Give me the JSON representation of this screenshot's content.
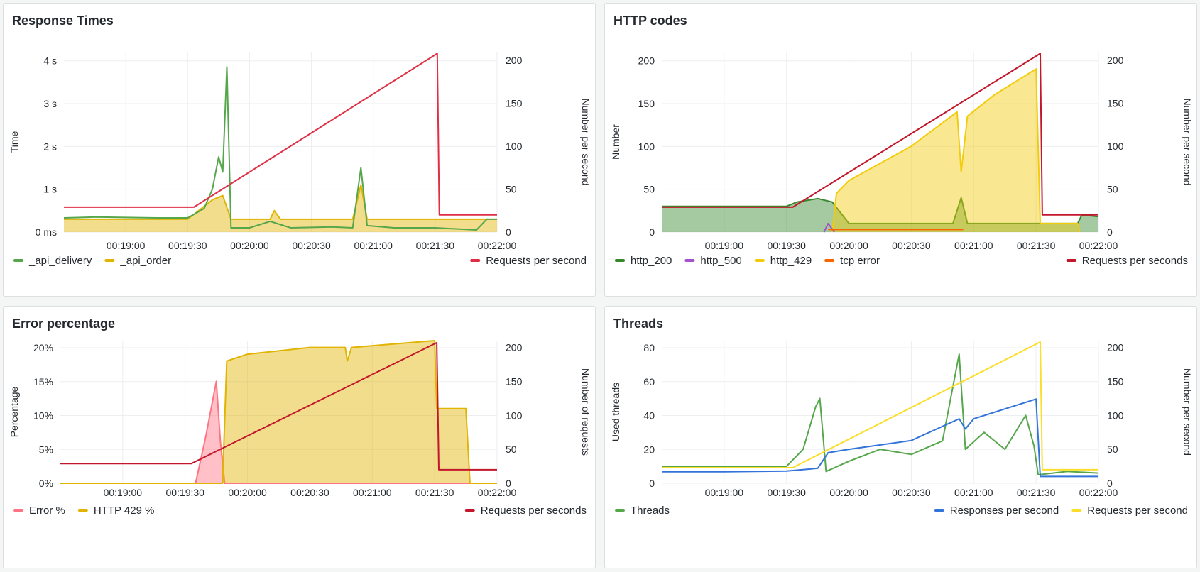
{
  "panels": [
    {
      "title": "Response Times",
      "chart_data": {
        "type": "line",
        "x_ticks": [
          "00:19:00",
          "00:19:30",
          "00:20:00",
          "00:20:30",
          "00:21:00",
          "00:21:30",
          "00:22:00"
        ],
        "y_left": {
          "label": "Time",
          "ticks": [
            "0 ms",
            "1 s",
            "2 s",
            "3 s",
            "4 s"
          ],
          "range": [
            0,
            4.2
          ],
          "unit": "s"
        },
        "y_right": {
          "label": "Number per second",
          "ticks": [
            "0",
            "50",
            "100",
            "150",
            "200"
          ],
          "range": [
            0,
            200
          ]
        },
        "series": [
          {
            "name": "_api_delivery",
            "color": "#56a64b",
            "axis": "left",
            "points": [
              [
                "00:18:30",
                0.33
              ],
              [
                "00:18:45",
                0.35
              ],
              [
                "00:19:00",
                0.34
              ],
              [
                "00:19:15",
                0.33
              ],
              [
                "00:19:30",
                0.33
              ],
              [
                "00:19:38",
                0.55
              ],
              [
                "00:19:42",
                1.0
              ],
              [
                "00:19:45",
                1.75
              ],
              [
                "00:19:47",
                1.4
              ],
              [
                "00:19:49",
                3.85
              ],
              [
                "00:19:51",
                0.1
              ],
              [
                "00:20:00",
                0.1
              ],
              [
                "00:20:10",
                0.25
              ],
              [
                "00:20:20",
                0.1
              ],
              [
                "00:20:40",
                0.12
              ],
              [
                "00:20:50",
                0.1
              ],
              [
                "00:20:54",
                1.5
              ],
              [
                "00:20:57",
                0.15
              ],
              [
                "00:21:10",
                0.1
              ],
              [
                "00:21:30",
                0.1
              ],
              [
                "00:21:50",
                0.05
              ],
              [
                "00:21:55",
                0.3
              ],
              [
                "00:22:00",
                0.3
              ]
            ]
          },
          {
            "name": "_api_order",
            "color": "#e0b400",
            "axis": "left",
            "fill": true,
            "points": [
              [
                "00:18:30",
                0.3
              ],
              [
                "00:19:00",
                0.3
              ],
              [
                "00:19:30",
                0.3
              ],
              [
                "00:19:42",
                0.75
              ],
              [
                "00:19:47",
                0.85
              ],
              [
                "00:19:51",
                0.3
              ],
              [
                "00:20:10",
                0.3
              ],
              [
                "00:20:12",
                0.5
              ],
              [
                "00:20:15",
                0.3
              ],
              [
                "00:20:50",
                0.3
              ],
              [
                "00:20:54",
                1.1
              ],
              [
                "00:20:57",
                0.3
              ],
              [
                "00:21:50",
                0.3
              ],
              [
                "00:22:00",
                0.3
              ]
            ]
          },
          {
            "name": "Requests per second",
            "color": "#e02f44",
            "axis": "right",
            "points": [
              [
                "00:18:30",
                29
              ],
              [
                "00:19:33",
                29
              ],
              [
                "00:21:31",
                208
              ],
              [
                "00:21:32",
                20
              ],
              [
                "00:22:00",
                20
              ]
            ]
          }
        ],
        "legend": {
          "placement": "bottom",
          "left": [
            "_api_delivery",
            "_api_order"
          ],
          "right": [
            "Requests per second"
          ]
        }
      }
    },
    {
      "title": "HTTP codes",
      "chart_data": {
        "type": "area",
        "x_ticks": [
          "00:19:00",
          "00:19:30",
          "00:20:00",
          "00:20:30",
          "00:21:00",
          "00:21:30",
          "00:22:00"
        ],
        "y_left": {
          "label": "Number",
          "ticks": [
            "0",
            "50",
            "100",
            "150",
            "200"
          ],
          "range": [
            0,
            210
          ]
        },
        "y_right": {
          "label": "Number per second",
          "ticks": [
            "0",
            "50",
            "100",
            "150",
            "200"
          ],
          "range": [
            0,
            200
          ]
        },
        "series": [
          {
            "name": "http_200",
            "color": "#37872d",
            "axis": "left",
            "fill": true,
            "points": [
              [
                "00:18:30",
                30
              ],
              [
                "00:19:00",
                30
              ],
              [
                "00:19:30",
                30
              ],
              [
                "00:19:35",
                35
              ],
              [
                "00:19:45",
                39
              ],
              [
                "00:19:52",
                35
              ],
              [
                "00:20:00",
                10
              ],
              [
                "00:20:30",
                10
              ],
              [
                "00:20:50",
                10
              ],
              [
                "00:20:54",
                40
              ],
              [
                "00:20:57",
                10
              ],
              [
                "00:21:30",
                10
              ],
              [
                "00:21:35",
                10
              ],
              [
                "00:21:50",
                10
              ],
              [
                "00:21:52",
                20
              ],
              [
                "00:22:00",
                18
              ]
            ]
          },
          {
            "name": "http_500",
            "color": "#a352cc",
            "axis": "left",
            "points": [
              [
                "00:19:48",
                0
              ],
              [
                "00:19:50",
                10
              ],
              [
                "00:19:53",
                0
              ]
            ]
          },
          {
            "name": "http_429",
            "color": "#f2cc0c",
            "axis": "left",
            "fill": true,
            "points": [
              [
                "00:19:52",
                0
              ],
              [
                "00:19:54",
                45
              ],
              [
                "00:20:00",
                60
              ],
              [
                "00:20:30",
                100
              ],
              [
                "00:20:52",
                140
              ],
              [
                "00:20:54",
                70
              ],
              [
                "00:20:57",
                135
              ],
              [
                "00:21:10",
                160
              ],
              [
                "00:21:30",
                190
              ],
              [
                "00:21:32",
                10
              ],
              [
                "00:21:50",
                10
              ],
              [
                "00:21:51",
                0
              ]
            ]
          },
          {
            "name": "tcp error",
            "color": "#fa6400",
            "axis": "left",
            "points": [
              [
                "00:19:50",
                3
              ],
              [
                "00:20:55",
                3
              ]
            ]
          },
          {
            "name": "Requests per seconds",
            "color": "#c4162a",
            "axis": "right",
            "points": [
              [
                "00:18:30",
                29
              ],
              [
                "00:19:33",
                29
              ],
              [
                "00:21:32",
                208
              ],
              [
                "00:21:33",
                20
              ],
              [
                "00:22:00",
                20
              ]
            ]
          }
        ],
        "legend": {
          "placement": "bottom",
          "left": [
            "http_200",
            "http_500",
            "http_429",
            "tcp error"
          ],
          "right": [
            "Requests per seconds"
          ]
        }
      }
    },
    {
      "title": "Error percentage",
      "chart_data": {
        "type": "area",
        "x_ticks": [
          "00:19:00",
          "00:19:30",
          "00:20:00",
          "00:20:30",
          "00:21:00",
          "00:21:30",
          "00:22:00"
        ],
        "y_left": {
          "label": "Percentage",
          "ticks": [
            "0%",
            "5%",
            "10%",
            "15%",
            "20%"
          ],
          "range": [
            0,
            21
          ],
          "unit": "%"
        },
        "y_right": {
          "label": "Number of requests",
          "ticks": [
            "0",
            "50",
            "100",
            "150",
            "200"
          ],
          "range": [
            0,
            200
          ]
        },
        "series": [
          {
            "name": "Error %",
            "color": "#ff7383",
            "axis": "left",
            "fill": true,
            "points": [
              [
                "00:18:30",
                0
              ],
              [
                "00:19:35",
                0
              ],
              [
                "00:19:40",
                7
              ],
              [
                "00:19:45",
                15
              ],
              [
                "00:19:47",
                6
              ],
              [
                "00:19:49",
                0
              ],
              [
                "00:22:00",
                0
              ]
            ]
          },
          {
            "name": "HTTP 429 %",
            "color": "#e0b400",
            "axis": "left",
            "fill": true,
            "points": [
              [
                "00:18:30",
                0
              ],
              [
                "00:19:48",
                0
              ],
              [
                "00:19:50",
                18
              ],
              [
                "00:20:00",
                19
              ],
              [
                "00:20:30",
                20
              ],
              [
                "00:20:47",
                20
              ],
              [
                "00:20:48",
                18
              ],
              [
                "00:20:50",
                20
              ],
              [
                "00:21:30",
                21
              ],
              [
                "00:21:31",
                11
              ],
              [
                "00:21:45",
                11
              ],
              [
                "00:21:47",
                0
              ],
              [
                "00:22:00",
                0
              ]
            ]
          },
          {
            "name": "Requests per seconds",
            "color": "#c4162a",
            "axis": "right",
            "points": [
              [
                "00:18:30",
                29
              ],
              [
                "00:19:33",
                29
              ],
              [
                "00:21:31",
                207
              ],
              [
                "00:21:32",
                20
              ],
              [
                "00:22:00",
                20
              ]
            ]
          }
        ],
        "legend": {
          "placement": "bottom",
          "left": [
            "Error %",
            "HTTP 429 %"
          ],
          "right": [
            "Requests per seconds"
          ]
        }
      }
    },
    {
      "title": "Threads",
      "chart_data": {
        "type": "line",
        "x_ticks": [
          "00:19:00",
          "00:19:30",
          "00:20:00",
          "00:20:30",
          "00:21:00",
          "00:21:30",
          "00:22:00"
        ],
        "y_left": {
          "label": "Used threads",
          "ticks": [
            "0",
            "20",
            "40",
            "60",
            "80"
          ],
          "range": [
            0,
            84
          ]
        },
        "y_right": {
          "label": "Number per second",
          "ticks": [
            "0",
            "50",
            "100",
            "150",
            "200"
          ],
          "range": [
            0,
            200
          ]
        },
        "series": [
          {
            "name": "Threads",
            "color": "#56a64b",
            "axis": "left",
            "points": [
              [
                "00:18:30",
                10
              ],
              [
                "00:19:00",
                10
              ],
              [
                "00:19:30",
                10
              ],
              [
                "00:19:38",
                20
              ],
              [
                "00:19:44",
                45
              ],
              [
                "00:19:46",
                50
              ],
              [
                "00:19:49",
                7
              ],
              [
                "00:20:00",
                13
              ],
              [
                "00:20:15",
                20
              ],
              [
                "00:20:30",
                17
              ],
              [
                "00:20:45",
                25
              ],
              [
                "00:20:53",
                76
              ],
              [
                "00:20:56",
                20
              ],
              [
                "00:21:05",
                30
              ],
              [
                "00:21:15",
                20
              ],
              [
                "00:21:25",
                40
              ],
              [
                "00:21:29",
                22
              ],
              [
                "00:21:31",
                5
              ],
              [
                "00:21:45",
                7
              ],
              [
                "00:22:00",
                6
              ]
            ]
          },
          {
            "name": "Responses per second",
            "color": "#3274d9",
            "axis": "right",
            "points": [
              [
                "00:18:30",
                17
              ],
              [
                "00:19:00",
                17
              ],
              [
                "00:19:30",
                18
              ],
              [
                "00:19:45",
                22
              ],
              [
                "00:19:50",
                45
              ],
              [
                "00:20:00",
                50
              ],
              [
                "00:20:30",
                63
              ],
              [
                "00:20:53",
                95
              ],
              [
                "00:20:56",
                80
              ],
              [
                "00:21:00",
                95
              ],
              [
                "00:21:30",
                124
              ],
              [
                "00:21:32",
                10
              ],
              [
                "00:22:00",
                10
              ]
            ]
          },
          {
            "name": "Requests per second",
            "color": "#fade2a",
            "axis": "right",
            "points": [
              [
                "00:18:30",
                23
              ],
              [
                "00:19:33",
                23
              ],
              [
                "00:21:32",
                208
              ],
              [
                "00:21:33",
                20
              ],
              [
                "00:22:00",
                20
              ]
            ]
          }
        ],
        "legend": {
          "placement": "bottom",
          "left": [
            "Threads"
          ],
          "right": [
            "Responses per second",
            "Requests per second"
          ]
        }
      }
    }
  ]
}
